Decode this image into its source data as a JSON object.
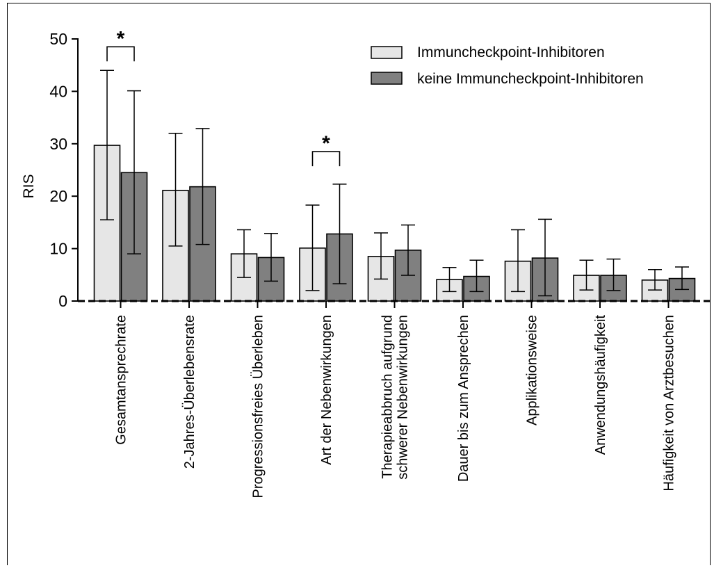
{
  "chart_data": {
    "type": "bar",
    "ylabel": "RIS",
    "xlabel": "",
    "ylim": [
      0,
      50
    ],
    "yticks": [
      "0",
      "10",
      "20",
      "30",
      "40",
      "50"
    ],
    "ytick_values": [
      0,
      10,
      20,
      30,
      40,
      50
    ],
    "grid": false,
    "legend_position": "top-right",
    "categories": [
      [
        "Gesamtansprechrate"
      ],
      [
        "2-Jahres-Überlebensrate"
      ],
      [
        "Progressionsfreies Überleben"
      ],
      [
        "Art der Nebenwirkungen"
      ],
      [
        "Therapieabbruch aufgrund",
        "schwerer Nebenwirkungen"
      ],
      [
        "Dauer bis zum Ansprechen"
      ],
      [
        "Applikationsweise"
      ],
      [
        "Anwendungshäufigkeit"
      ],
      [
        "Häufigkeit von Arztbesuchen"
      ]
    ],
    "series": [
      {
        "name": "Immuncheckpoint-Inhibitoren",
        "color": "#e6e6e6",
        "values": [
          29.7,
          21.1,
          9.0,
          10.1,
          8.5,
          4.1,
          7.6,
          4.9,
          4.0
        ],
        "err_low": [
          15.5,
          10.5,
          4.5,
          2.0,
          4.2,
          1.8,
          1.8,
          2.1,
          2.1
        ],
        "err_high": [
          44.0,
          32.0,
          13.6,
          18.3,
          13.0,
          6.4,
          13.6,
          7.8,
          6.0
        ]
      },
      {
        "name": "keine Immuncheckpoint-Inhibitoren",
        "color": "#808080",
        "values": [
          24.5,
          21.8,
          8.3,
          12.8,
          9.7,
          4.7,
          8.2,
          4.9,
          4.3
        ],
        "err_low": [
          9.0,
          10.8,
          3.8,
          3.3,
          4.9,
          1.8,
          1.0,
          2.0,
          2.2
        ],
        "err_high": [
          40.1,
          32.9,
          12.9,
          22.3,
          14.5,
          7.8,
          15.6,
          8.0,
          6.5
        ]
      }
    ],
    "significance": [
      {
        "category_index": 0,
        "label": "*",
        "level": 48.5
      },
      {
        "category_index": 3,
        "label": "*",
        "level": 28.5
      }
    ]
  }
}
